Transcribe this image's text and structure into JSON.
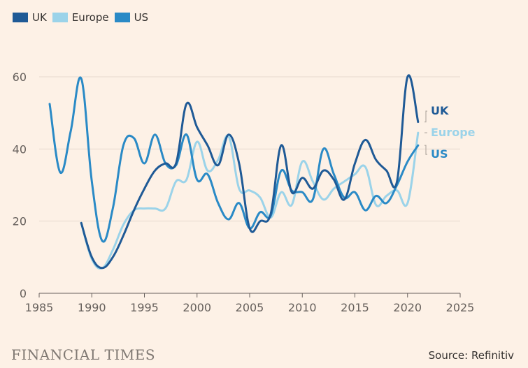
{
  "chart_data": {
    "type": "line",
    "title": "",
    "xlabel": "",
    "ylabel": "",
    "xlim": [
      1985,
      2025
    ],
    "ylim": [
      0,
      60
    ],
    "x_ticks": [
      1985,
      1990,
      1995,
      2000,
      2005,
      2010,
      2015,
      2020,
      2025
    ],
    "y_ticks": [
      0,
      20,
      40,
      60
    ],
    "legend": [
      "UK",
      "Europe",
      "US"
    ],
    "series": [
      {
        "name": "UK",
        "color": "#1f5a96",
        "x": [
          1989,
          1990,
          1991,
          1992,
          1993,
          1994,
          1995,
          1996,
          1997,
          1998,
          1999,
          2000,
          2001,
          2002,
          2003,
          2004,
          2005,
          2006,
          2007,
          2008,
          2009,
          2010,
          2011,
          2012,
          2013,
          2014,
          2015,
          2016,
          2017,
          2018,
          2019,
          2020,
          2021
        ],
        "y": [
          19.5,
          10,
          7,
          10,
          16,
          23,
          29,
          34,
          36,
          36,
          52.5,
          46,
          41,
          35.5,
          44,
          36,
          18,
          20,
          22,
          41,
          28,
          32,
          29,
          34,
          31.5,
          26,
          36,
          42.5,
          37,
          34,
          31,
          60,
          47.5
        ]
      },
      {
        "name": "Europe",
        "color": "#9bd3e9",
        "x": [
          1989,
          1990,
          1991,
          1992,
          1993,
          1994,
          1995,
          1996,
          1997,
          1998,
          1999,
          2000,
          2001,
          2002,
          2003,
          2004,
          2005,
          2006,
          2007,
          2008,
          2009,
          2010,
          2011,
          2012,
          2013,
          2014,
          2015,
          2016,
          2017,
          2018,
          2019,
          2020,
          2021
        ],
        "y": [
          19.5,
          9.5,
          7,
          12,
          19,
          23,
          23.5,
          23.5,
          23.5,
          31,
          31.5,
          42,
          34,
          37,
          43.5,
          29,
          28.5,
          26.5,
          21,
          28,
          24.5,
          36.5,
          31,
          26,
          29,
          31,
          33,
          35,
          24.5,
          27,
          28.5,
          25,
          44.5
        ]
      },
      {
        "name": "US",
        "color": "#2a8ac6",
        "x": [
          1986,
          1987,
          1988,
          1989,
          1990,
          1991,
          1992,
          1993,
          1994,
          1995,
          1996,
          1997,
          1998,
          1999,
          2000,
          2001,
          2002,
          2003,
          2004,
          2005,
          2006,
          2007,
          2008,
          2009,
          2010,
          2011,
          2012,
          2013,
          2014,
          2015,
          2016,
          2017,
          2018,
          2019,
          2020,
          2021
        ],
        "y": [
          52.5,
          33.5,
          45,
          59.5,
          31,
          14.5,
          23.5,
          41,
          43,
          36,
          44,
          36,
          35.5,
          44,
          31.5,
          33,
          25,
          20.5,
          25,
          18,
          22.5,
          21.5,
          34,
          28.5,
          28,
          26,
          40,
          33,
          26.5,
          28,
          23,
          27,
          25,
          30,
          36.5,
          41
        ]
      }
    ],
    "end_labels": [
      {
        "name": "UK",
        "color": "#1f5a96",
        "value": 50.5
      },
      {
        "name": "Europe",
        "color": "#9bd3e9",
        "value": 44.5
      },
      {
        "name": "US",
        "color": "#2a8ac6",
        "value": 38.5
      }
    ]
  },
  "footer": {
    "brand": "FINANCIAL TIMES",
    "source": "Source: Refinitiv"
  }
}
